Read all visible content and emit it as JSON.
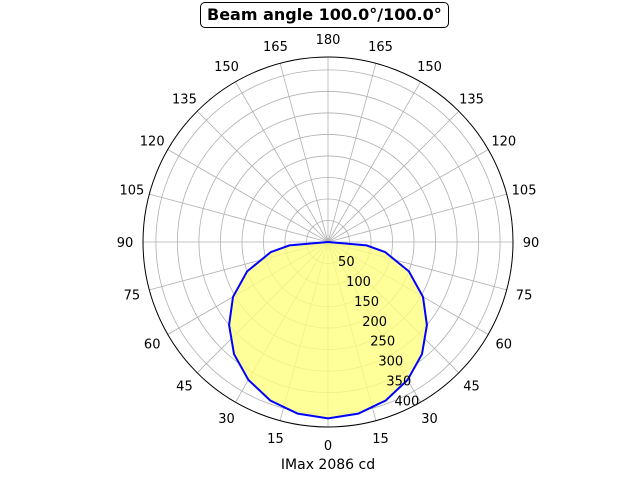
{
  "chart_data": {
    "type": "polar",
    "title": "Beam angle 100.0°/100.0°",
    "xlabel": "IMax 2086 cd",
    "angle_tick_labels": [
      "0",
      "15",
      "30",
      "45",
      "60",
      "75",
      "90",
      "105",
      "120",
      "135",
      "150",
      "165",
      "180",
      "165",
      "150",
      "135",
      "120",
      "105",
      "90",
      "75",
      "60",
      "45",
      "30",
      "15"
    ],
    "radial_tick_labels": [
      "50",
      "100",
      "150",
      "200",
      "250",
      "300",
      "350",
      "400"
    ],
    "radial_ticks": [
      50,
      100,
      150,
      200,
      250,
      300,
      350,
      400
    ],
    "rlim": [
      0,
      430
    ],
    "grid": true,
    "angle_step_deg": 15,
    "series": [
      {
        "angles_deg": [
          0,
          10,
          20,
          30,
          40,
          50,
          60,
          70,
          80,
          85,
          90,
          95,
          100,
          110,
          120,
          130,
          140,
          150,
          160,
          170,
          180
        ],
        "values": [
          410,
          405,
          392,
          370,
          340,
          300,
          255,
          200,
          135,
          90,
          0,
          -90,
          -135,
          -200,
          -255,
          -300,
          -340,
          -370,
          -392,
          -405,
          -410
        ],
        "note_values": "signed: negative values lie on the opposite side of 0°",
        "line_color": "#0000ff",
        "fill_color": "#ffff80"
      }
    ]
  }
}
